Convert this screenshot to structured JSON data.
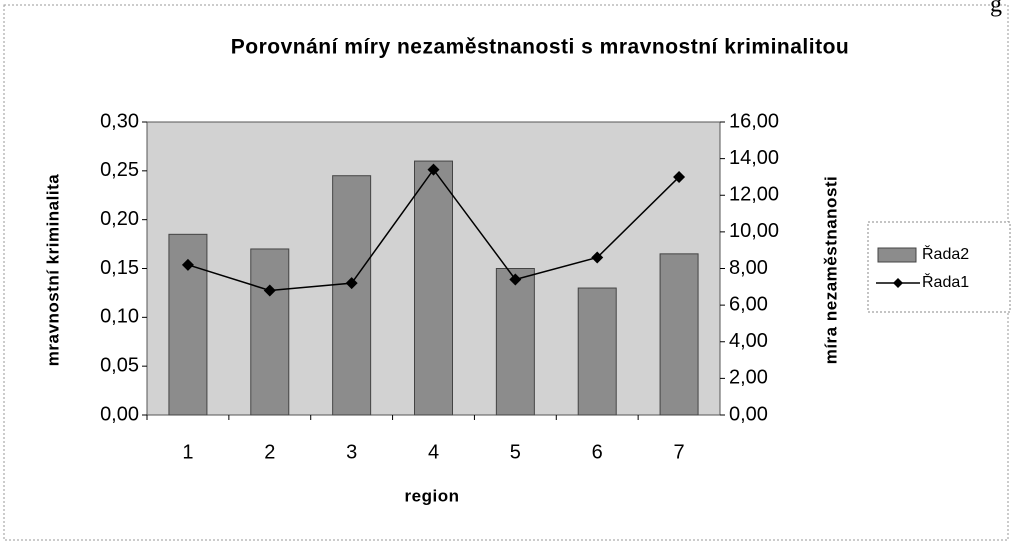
{
  "chart_data": {
    "type": "bar_line",
    "title": "Porovnání míry nezaměstnanosti s mravnostní kriminalitou",
    "annotations": [
      "g"
    ],
    "x_label": "region",
    "y_label": "mravnostní kriminalita",
    "y2_label": "míra nezaměstnanosti",
    "categories": [
      "1",
      "2",
      "3",
      "4",
      "5",
      "6",
      "7"
    ],
    "series": [
      {
        "name": "Řada2",
        "type": "bar",
        "color": "#8c8c8c",
        "axis": "y",
        "values": [
          0.185,
          0.17,
          0.245,
          0.26,
          0.15,
          0.13,
          0.165
        ]
      },
      {
        "name": "Řada1",
        "type": "line",
        "color": "#000000",
        "axis": "y2",
        "values": [
          8.2,
          6.8,
          7.2,
          13.4,
          7.4,
          8.6,
          13.0
        ]
      }
    ],
    "ylim": [
      0,
      0.3
    ],
    "yticks": [
      {
        "value": 0,
        "label": "0,00"
      },
      {
        "value": 0.05,
        "label": "0,05"
      },
      {
        "value": 0.1,
        "label": "0,10"
      },
      {
        "value": 0.15,
        "label": "0,15"
      },
      {
        "value": 0.2,
        "label": "0,20"
      },
      {
        "value": 0.25,
        "label": "0,25"
      },
      {
        "value": 0.3,
        "label": "0,30"
      }
    ],
    "y2lim": [
      0,
      16
    ],
    "y2ticks": [
      {
        "value": 0,
        "label": "0,00"
      },
      {
        "value": 2,
        "label": "2,00"
      },
      {
        "value": 4,
        "label": "4,00"
      },
      {
        "value": 6,
        "label": "6,00"
      },
      {
        "value": 8,
        "label": "8,00"
      },
      {
        "value": 10,
        "label": "10,00"
      },
      {
        "value": 12,
        "label": "12,00"
      },
      {
        "value": 14,
        "label": "14,00"
      },
      {
        "value": 16,
        "label": "16,00"
      }
    ],
    "plot_background": "#d2d2d2",
    "legend": "right"
  }
}
